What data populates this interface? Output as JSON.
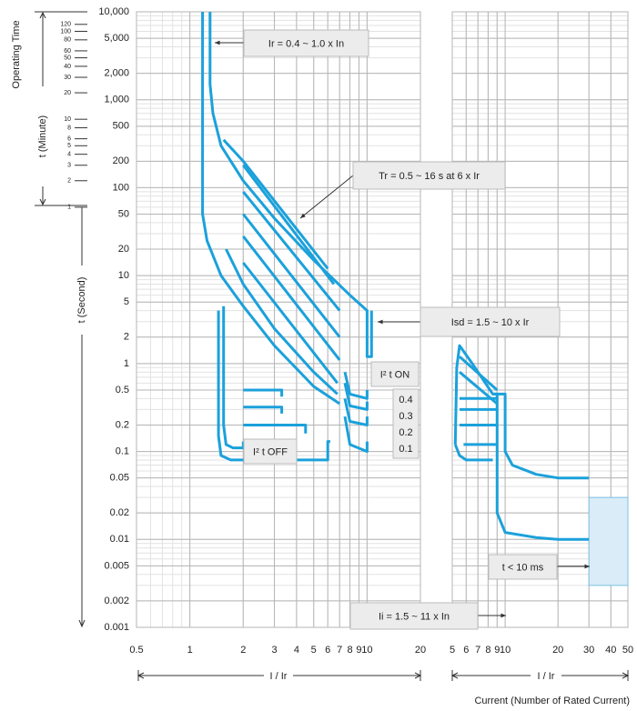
{
  "caption": "Current (Number of Rated Current)",
  "chart_data": [
    {
      "type": "line",
      "y_title": "Operating Time",
      "ylabel": "t (Second)",
      "y2label": "t (Minute)",
      "xlabel": "I / Ir",
      "xscale": "log",
      "yscale": "log",
      "grid": true,
      "minor_grid": true,
      "color": "#1ba1db",
      "xlim": [
        0.5,
        20
      ],
      "xticks": [
        0.5,
        1,
        2,
        3,
        4,
        5,
        6,
        7,
        8,
        9,
        10,
        20
      ],
      "ylim": [
        0.001,
        10000
      ],
      "yticks": [
        {
          "value": 10000,
          "label": "10,000"
        },
        {
          "value": 5000,
          "label": "5,000"
        },
        {
          "value": 2000,
          "label": "2,000"
        },
        {
          "value": 1000,
          "label": "1,000"
        },
        500,
        200,
        100,
        50,
        20,
        10,
        5,
        2,
        1,
        0.5,
        0.2,
        0.1,
        0.05,
        0.02,
        0.01,
        0.005,
        0.002,
        0.001
      ],
      "y2lim": [
        1.66667e-05,
        166.667
      ],
      "y2ticks": [
        120,
        100,
        80,
        60,
        50,
        40,
        30,
        20,
        10,
        8,
        6,
        5,
        4,
        3,
        2,
        1
      ],
      "annotations": [
        "Ir = 0.4 ~ 1.0 x In",
        "Tr = 0.5 ~ 16 s at 6 x Ir",
        "Isd = 1.5 ~ 10 x Ir",
        "I² t ON",
        "0.4",
        "0.3",
        "0.2",
        "0.1",
        "I² t OFF",
        "Ii = 1.5 ~ 11 x In"
      ],
      "series": [
        {
          "x": [
            1.3,
            1.3,
            1.35,
            1.5,
            2,
            3,
            5,
            8,
            10,
            10,
            10.6,
            10.6
          ],
          "values": [
            10000,
            1500,
            700,
            300,
            120,
            45,
            15,
            6,
            4,
            1.2,
            1.2,
            4
          ]
        },
        {
          "x": [
            1.18,
            1.18,
            1.25,
            1.5,
            2,
            3,
            5,
            7
          ],
          "values": [
            10000,
            50,
            25,
            10,
            4.5,
            1.6,
            0.55,
            0.35
          ]
        },
        {
          "x": [
            1.55,
            2,
            6
          ],
          "values": [
            350,
            200,
            12
          ]
        },
        {
          "x": [
            2,
            6.5
          ],
          "values": [
            180,
            8
          ]
        },
        {
          "x": [
            2,
            7
          ],
          "values": [
            90,
            4
          ]
        },
        {
          "x": [
            2,
            7
          ],
          "values": [
            50,
            2
          ]
        },
        {
          "x": [
            2,
            7
          ],
          "values": [
            28,
            1.1
          ]
        },
        {
          "x": [
            2,
            6.8
          ],
          "values": [
            14,
            0.6
          ]
        },
        {
          "x": [
            1.6,
            2,
            3,
            5,
            6.8
          ],
          "values": [
            20,
            8,
            2.5,
            0.8,
            0.45
          ]
        },
        {
          "x": [
            1.45,
            1.45,
            1.5,
            1.7,
            6,
            6,
            6.2
          ],
          "values": [
            4,
            0.15,
            0.09,
            0.08,
            0.08,
            0.13,
            0.13
          ]
        },
        {
          "x": [
            1.55,
            1.55,
            1.6,
            1.75,
            2,
            2
          ],
          "values": [
            4.5,
            0.2,
            0.12,
            0.11,
            0.11,
            0.13
          ]
        },
        {
          "x": [
            2,
            3.3,
            3.3
          ],
          "values": [
            0.5,
            0.5,
            0.42
          ]
        },
        {
          "x": [
            2,
            3.3,
            3.3
          ],
          "values": [
            0.32,
            0.32,
            0.27
          ]
        },
        {
          "x": [
            2,
            4.5,
            4.5
          ],
          "values": [
            0.2,
            0.2,
            0.16
          ]
        },
        {
          "x": [
            7.5,
            8,
            10,
            10
          ],
          "values": [
            0.8,
            0.45,
            0.4,
            0.5
          ]
        },
        {
          "x": [
            7.5,
            8,
            10,
            10
          ],
          "values": [
            0.6,
            0.33,
            0.3,
            0.37
          ]
        },
        {
          "x": [
            7.5,
            8,
            10,
            10
          ],
          "values": [
            0.4,
            0.22,
            0.2,
            0.25
          ]
        },
        {
          "x": [
            7.5,
            8,
            10,
            10
          ],
          "values": [
            0.25,
            0.12,
            0.1,
            0.13
          ]
        }
      ]
    },
    {
      "type": "line",
      "xlabel": "I / Ir",
      "xscale": "log",
      "yscale": "log",
      "grid": true,
      "minor_grid": true,
      "color": "#1ba1db",
      "xlim": [
        5,
        50
      ],
      "xticks": [
        5,
        6,
        7,
        8,
        9,
        10,
        20,
        30,
        40,
        50
      ],
      "ylim": [
        0.001,
        10000
      ],
      "yticks": [
        10000,
        5000,
        2000,
        1000,
        500,
        200,
        100,
        50,
        20,
        10,
        5,
        2,
        1,
        0.5,
        0.2,
        0.1,
        0.05,
        0.02,
        0.01,
        0.005,
        0.002,
        0.001
      ],
      "annotations": [
        "t < 10 ms"
      ],
      "region": {
        "x": [
          30,
          50
        ],
        "y": [
          0.003,
          0.03
        ],
        "color": "#d9ecf7"
      },
      "series": [
        {
          "x": [
            5.2,
            5.3,
            5.5,
            6.5,
            8.5,
            9,
            9,
            10,
            15,
            20,
            30
          ],
          "values": [
            0.12,
            0.9,
            1.6,
            1,
            0.45,
            0.45,
            0.02,
            0.012,
            0.0105,
            0.01,
            0.01
          ]
        },
        {
          "x": [
            8.5,
            10,
            10,
            11,
            15,
            20,
            30
          ],
          "values": [
            0.45,
            0.45,
            0.1,
            0.07,
            0.055,
            0.05,
            0.05
          ]
        },
        {
          "x": [
            5.2,
            5.5,
            6,
            8.5
          ],
          "values": [
            0.12,
            0.09,
            0.08,
            0.08
          ]
        },
        {
          "x": [
            5.5,
            9
          ],
          "values": [
            1.2,
            0.5
          ]
        },
        {
          "x": [
            5.5,
            9
          ],
          "values": [
            0.8,
            0.35
          ]
        },
        {
          "x": [
            5.5,
            9
          ],
          "values": [
            0.4,
            0.4
          ]
        },
        {
          "x": [
            5.5,
            9
          ],
          "values": [
            0.3,
            0.3
          ]
        },
        {
          "x": [
            5.5,
            9
          ],
          "values": [
            0.2,
            0.2
          ]
        },
        {
          "x": [
            5.8,
            9
          ],
          "values": [
            0.12,
            0.12
          ]
        }
      ]
    }
  ]
}
